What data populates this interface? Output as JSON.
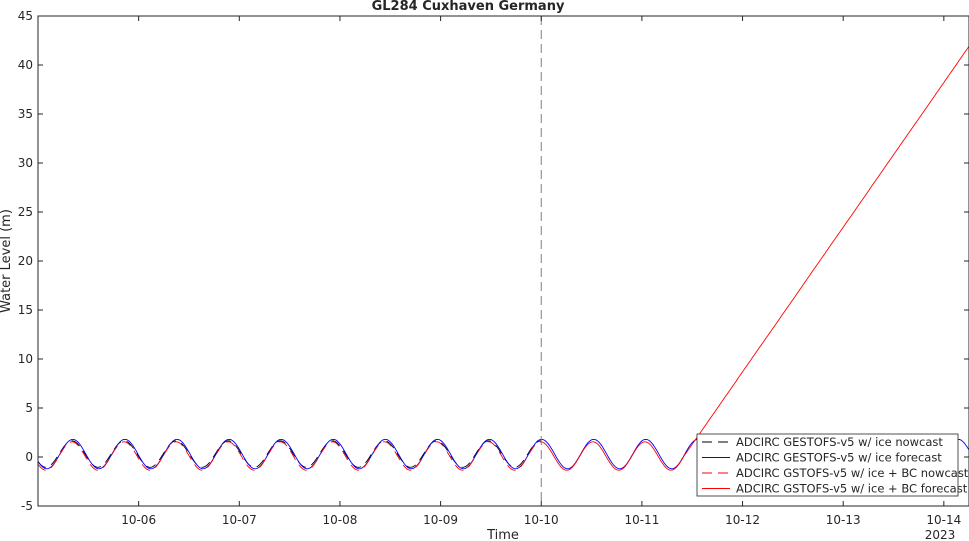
{
  "chart_data": {
    "type": "line",
    "title": "GL284 Cuxhaven Germany",
    "xlabel": "Time",
    "ylabel": "Water Level (m)",
    "x_start": "2023-10-05",
    "x_end": "2023-10-14 06:00",
    "xticks": [
      "10-06",
      "10-07",
      "10-08",
      "10-09",
      "10-10",
      "10-11",
      "10-12",
      "10-13",
      "10-14"
    ],
    "x_year_label": "2023",
    "ylim": [
      -5,
      45
    ],
    "yticks": [
      -5,
      0,
      5,
      10,
      15,
      20,
      25,
      30,
      35,
      40,
      45
    ],
    "vline_x": "2023-10-10",
    "grid": false,
    "legend_position": "bottom-right",
    "series": [
      {
        "name": "ADCIRC GESTOFS-v5 w/ ice nowcast",
        "color": "#000000",
        "style": "dashed",
        "amplitude": 1.35,
        "offset": 0.3,
        "phase_hours": 5.0,
        "x_range": [
          "2023-10-05",
          "2023-10-10"
        ]
      },
      {
        "name": "ADCIRC GESTOFS-v5 w/ ice forecast",
        "color": "#0000ff",
        "style": "solid",
        "amplitude": 1.5,
        "offset": 0.3,
        "phase_hours": 5.2,
        "x_range": [
          "2023-10-05",
          "2023-10-14 06:00"
        ]
      },
      {
        "name": "ADCIRC GSTOFS-v5 w/ ice + BC nowcast",
        "color": "#ff0000",
        "style": "dashed",
        "amplitude": 1.45,
        "offset": 0.1,
        "phase_hours": 5.0,
        "x_range": [
          "2023-10-05",
          "2023-10-10"
        ]
      },
      {
        "name": "ADCIRC GSTOFS-v5 w/ ice + BC forecast",
        "color": "#ff0000",
        "style": "solid",
        "amplitude": 1.45,
        "offset": 0.1,
        "phase_hours": 5.0,
        "x_range": [
          "2023-10-10",
          "2023-10-14 06:00"
        ],
        "ramp_start": "2023-10-11 10:00",
        "ramp_end_value": 41.9
      }
    ]
  }
}
